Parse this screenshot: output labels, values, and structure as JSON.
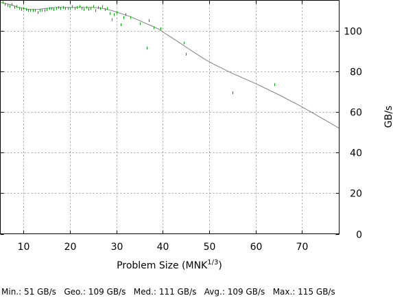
{
  "chart_data": {
    "type": "scatter",
    "xlabel": "Problem Size (MNK",
    "xlabel_sup": "1/3",
    "xlabel_close": ")",
    "ylabel": "GB/s",
    "xlim": [
      5,
      78
    ],
    "ylim": [
      0,
      115
    ],
    "grid": true,
    "x_ticks": [
      10,
      20,
      30,
      40,
      50,
      60,
      70
    ],
    "y_ticks": [
      0,
      20,
      40,
      60,
      80,
      100
    ],
    "x_tick_labels": [
      "10",
      "20",
      "30",
      "40",
      "50",
      "60",
      "70"
    ],
    "y_tick_labels": [
      "0",
      "20",
      "40",
      "60",
      "80",
      "100"
    ],
    "series": [
      {
        "kind": "points",
        "color": "#00a000",
        "x": [
          5.5,
          6,
          6.5,
          7,
          7.5,
          8,
          8.5,
          9,
          9.5,
          10,
          10.5,
          11,
          11.5,
          12,
          12.5,
          13,
          13.5,
          14,
          14.5,
          15,
          15.5,
          16,
          16.5,
          17,
          17.5,
          18,
          18.5,
          19,
          19.5,
          20,
          20.5,
          21,
          21.5,
          22,
          22.5,
          23,
          23.5,
          24,
          24.5,
          25,
          25.5,
          26,
          26.5,
          27,
          27.5,
          28,
          28.5,
          29,
          29.5,
          30,
          31,
          31.5,
          32,
          33,
          35,
          36.5,
          37,
          38,
          39.5,
          44.5,
          45,
          55,
          64
        ],
        "y": [
          114,
          113,
          112.5,
          112,
          113,
          111.5,
          112,
          111,
          110.5,
          111,
          110.5,
          110,
          110,
          110,
          110,
          109,
          110,
          110,
          110,
          110.5,
          111,
          111,
          110.5,
          111,
          111.5,
          111,
          111.5,
          111,
          111,
          111,
          112,
          111,
          111.5,
          112,
          111,
          110.5,
          111.5,
          110.5,
          111,
          112,
          110,
          111.5,
          111,
          112,
          110.5,
          111,
          108.5,
          105.5,
          108,
          109,
          103,
          106.5,
          108,
          106.5,
          103.5,
          91.5,
          105,
          101.5,
          101,
          94,
          88.5,
          69.5,
          73.5
        ]
      },
      {
        "kind": "line",
        "color": "#808080",
        "x": [
          5,
          7,
          9,
          11,
          13,
          15,
          17,
          19,
          21,
          23,
          25,
          27,
          29,
          31,
          33,
          35,
          37,
          39,
          41,
          43,
          45,
          47,
          49,
          51,
          55,
          60,
          65,
          70,
          75,
          78
        ],
        "y": [
          114,
          113,
          111.5,
          110.5,
          110.5,
          111,
          111.5,
          111.5,
          111.5,
          111.5,
          111.5,
          111,
          110,
          108.5,
          107,
          105,
          103,
          101,
          98,
          95,
          92,
          89,
          86,
          83.5,
          79,
          74,
          68.5,
          62.5,
          56,
          52
        ]
      }
    ]
  },
  "stats_text": "Min.: 51 GB/s   Geo.: 109 GB/s   Med.: 111 GB/s   Avg.: 109 GB/s   Max.: 115 GB/s"
}
